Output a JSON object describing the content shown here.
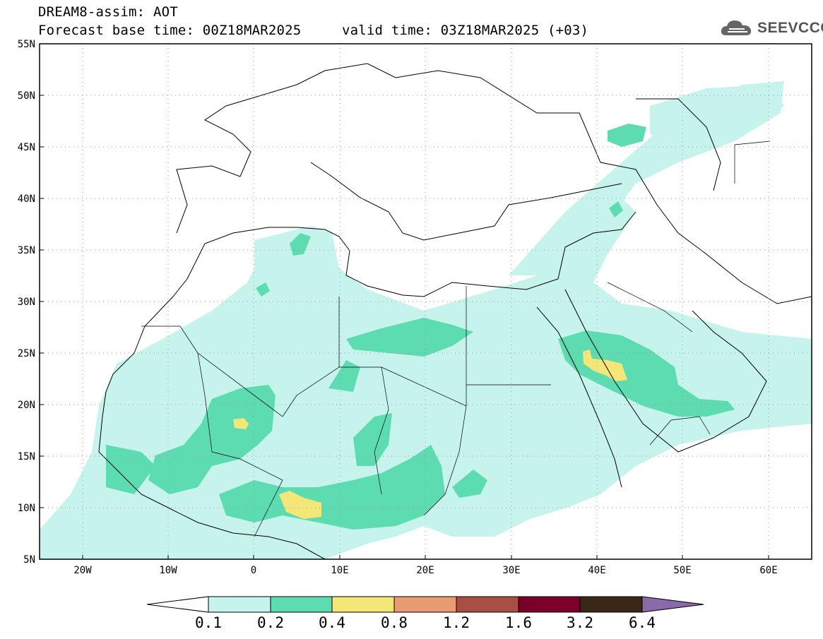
{
  "header": {
    "title": "DREAM8-assim: AOT",
    "base_time": "Forecast base time: 00Z18MAR2025",
    "valid_time": "valid time: 03Z18MAR2025 (+03)",
    "logo_text": "SEEVCCC"
  },
  "map": {
    "projection": "lat-lon",
    "lon_range": [
      -25,
      65
    ],
    "lat_range": [
      5,
      55
    ],
    "lat_labels": [
      "55N",
      "50N",
      "45N",
      "40N",
      "35N",
      "30N",
      "25N",
      "20N",
      "15N",
      "10N",
      "5N"
    ],
    "lon_labels": [
      "20W",
      "10W",
      "0",
      "10E",
      "20E",
      "30E",
      "40E",
      "50E",
      "60E"
    ],
    "field": "Aerosol Optical Thickness",
    "features": [
      "coastlines",
      "country-borders",
      "dotted-graticule"
    ]
  },
  "colorbar": {
    "levels": [
      "0.1",
      "0.2",
      "0.4",
      "0.8",
      "1.2",
      "1.6",
      "3.2",
      "6.4"
    ],
    "colors": [
      "#ffffff",
      "#c6f3ec",
      "#5cdcb0",
      "#f5e678",
      "#e99b72",
      "#a94e44",
      "#7a0029",
      "#3a2718",
      "#8a6aa8"
    ]
  }
}
